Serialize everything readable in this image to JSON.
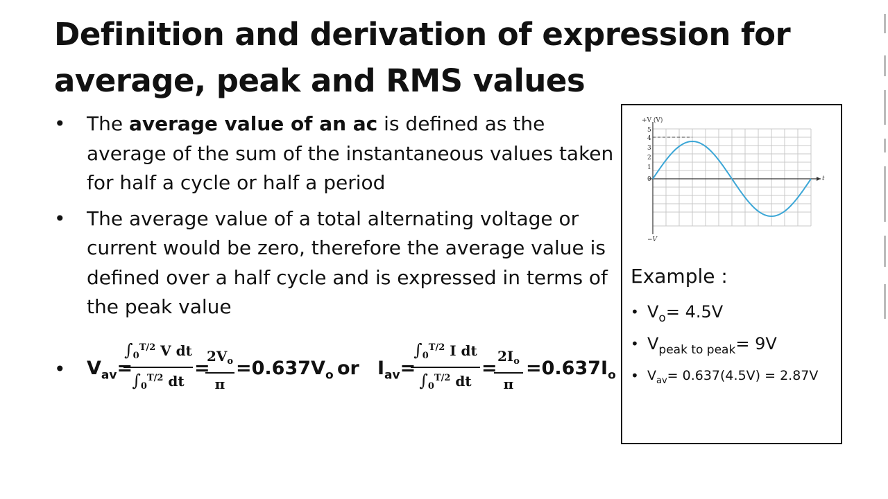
{
  "slide": {
    "title": "Definition and derivation of expression for average, peak and RMS values",
    "bullets": [
      {
        "pre": "The ",
        "bold": "average value of an ac",
        "post": " is defined as the average of the sum of the instantaneous values taken for half a cycle or half a period"
      },
      {
        "pre": "The  average value of a total alternating voltage or current would be zero, therefore the average value is defined over a half cycle and is expressed in terms of the peak value",
        "bold": "",
        "post": ""
      }
    ],
    "formula": {
      "v_symbol": "V",
      "v_sub": "av",
      "v_num": "∫",
      "v_num_sub": "0",
      "v_num_sup": "T/2",
      "v_num_tail": " V dt",
      "v_den": "∫",
      "v_den_sub": "0",
      "v_den_sup": "T/2",
      "v_den_tail": " dt",
      "v_frac2_num": "2V",
      "v_frac2_num_sub": "o",
      "v_frac2_den": "π",
      "v_result": "=0.637V",
      "v_result_sub": "o",
      "or_label": "or",
      "i_symbol": "I",
      "i_sub": "av",
      "i_num_tail": " I dt",
      "i_frac2_num": "2I",
      "i_frac2_num_sub": "o",
      "i_result": "=0.637I",
      "i_result_sub": "o",
      "equals": "="
    }
  },
  "example": {
    "label": "Example :",
    "items": [
      {
        "main": "V",
        "sub": "o",
        "tail": "= 4.5V"
      },
      {
        "main": "V",
        "sub": "peak to peak",
        "tail": "= 9V"
      },
      {
        "main": "V",
        "sub": "av",
        "tail": "= 0.637(4.5V) = 2.87V"
      }
    ]
  },
  "graph": {
    "y_axis_label": "+V (V)",
    "y_neg_label": "−V",
    "x_axis_label": "t",
    "y_ticks": [
      "5",
      "4",
      "3",
      "2",
      "1",
      "0"
    ],
    "wave_color": "#3ba6d6",
    "chart_data": {
      "type": "line",
      "function": "sine",
      "peak": 4.5,
      "cycles": 1
    }
  }
}
